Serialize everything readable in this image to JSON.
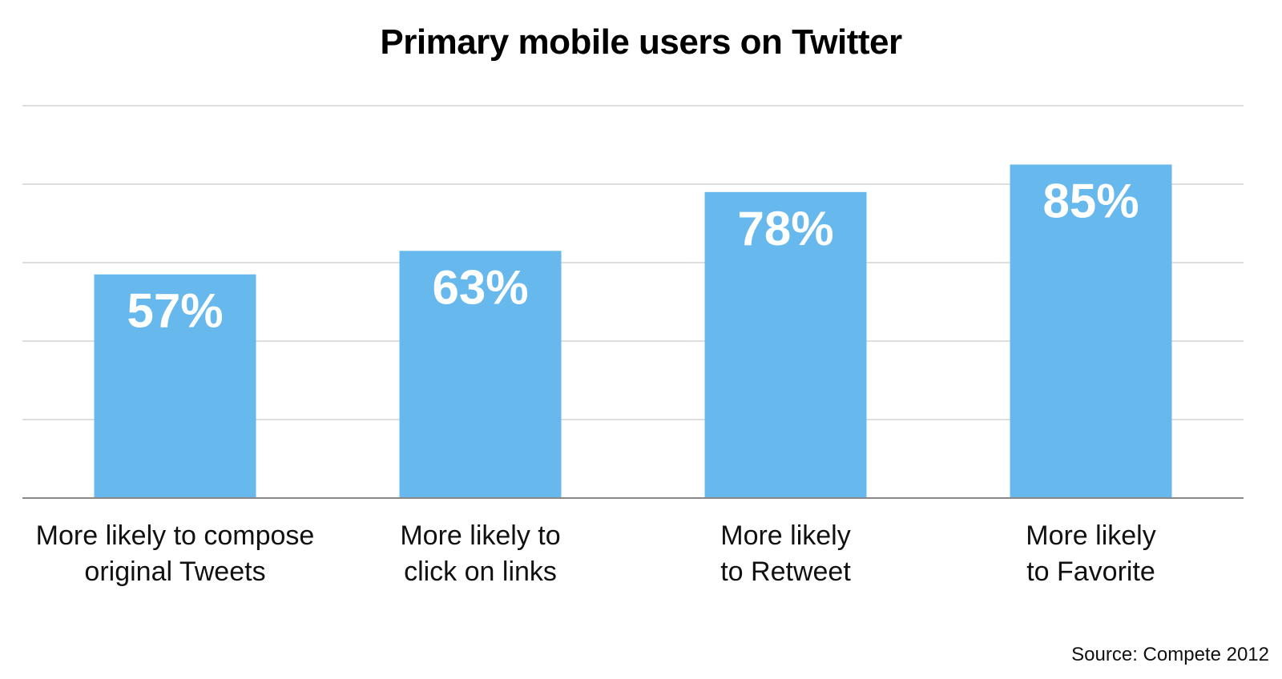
{
  "chart_data": {
    "type": "bar",
    "title": "Primary mobile users on Twitter",
    "categories": [
      [
        "More likely to compose",
        "original Tweets"
      ],
      [
        "More likely to",
        "click on links"
      ],
      [
        "More likely",
        "to Retweet"
      ],
      [
        "More likely",
        "to Favorite"
      ]
    ],
    "values": [
      57,
      63,
      78,
      85
    ],
    "value_labels": [
      "57%",
      "63%",
      "78%",
      "85%"
    ],
    "ylim": [
      0,
      100
    ],
    "grid": true,
    "bar_color": "#67b8ed",
    "grid_color": "#d4d4d4",
    "axis_color": "#888888",
    "source": "Source: Compete 2012"
  }
}
